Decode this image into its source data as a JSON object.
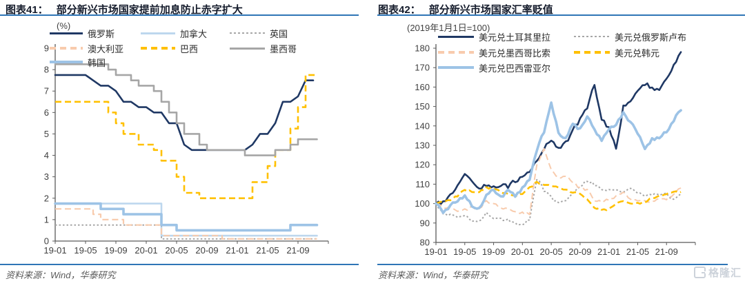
{
  "page": {
    "background": "#ffffff"
  },
  "logo": {
    "text": "格隆汇"
  },
  "colors": {
    "accent_rule": "#2E75B6",
    "navy": "#1F3864",
    "light_blue": "#BDD7EE",
    "medium_blue": "#9DC3E6",
    "gray": "#A6A6A6",
    "peach": "#F8CBAD",
    "gold": "#FFC000"
  },
  "chart_data": [
    {
      "type": "line",
      "fig_label": "图表41：",
      "title": "部分新兴市场国家提前加息防止赤字扩大",
      "unit_label": "(%)",
      "source": "资料来源：Wind，华泰研究",
      "x_start": "2019-01",
      "x_end": "2021-11",
      "x_interval": "monthly",
      "x_tick_labels": [
        "19-01",
        "19-05",
        "19-09",
        "20-01",
        "20-05",
        "20-09",
        "21-01",
        "21-05",
        "21-09"
      ],
      "ylim": [
        0,
        9
      ],
      "y_ticks": [
        0,
        1,
        2,
        3,
        4,
        5,
        6,
        7,
        8,
        9
      ],
      "grid": false,
      "legend_position": "top",
      "series": [
        {
          "name": "俄罗斯",
          "color": "#1F3864",
          "style": "solid",
          "width": 2.6,
          "render": "linear",
          "values": [
            7.75,
            7.75,
            7.75,
            7.75,
            7.75,
            7.5,
            7.25,
            7.25,
            7,
            6.5,
            6.5,
            6.25,
            6.25,
            6,
            6,
            5.5,
            5.5,
            4.5,
            4.25,
            4.25,
            4.25,
            4.25,
            4.25,
            4.25,
            4.25,
            4.25,
            4.5,
            5,
            5,
            5.5,
            6.5,
            6.5,
            6.75,
            7.5,
            7.5
          ]
        },
        {
          "name": "加拿大",
          "color": "#BDD7EE",
          "style": "solid",
          "width": 2.6,
          "render": "step",
          "values": [
            1.75,
            1.75,
            1.75,
            1.75,
            1.75,
            1.75,
            1.75,
            1.75,
            1.75,
            1.75,
            1.75,
            1.75,
            1.75,
            1.75,
            0.25,
            0.25,
            0.25,
            0.25,
            0.25,
            0.25,
            0.25,
            0.25,
            0.25,
            0.25,
            0.25,
            0.25,
            0.25,
            0.25,
            0.25,
            0.25,
            0.25,
            0.25,
            0.25,
            0.25,
            0.25
          ]
        },
        {
          "name": "英国",
          "color": "#A6A6A6",
          "style": "dotted",
          "width": 2,
          "render": "step",
          "values": [
            0.75,
            0.75,
            0.75,
            0.75,
            0.75,
            0.75,
            0.75,
            0.75,
            0.75,
            0.75,
            0.75,
            0.75,
            0.75,
            0.75,
            0.1,
            0.1,
            0.1,
            0.1,
            0.1,
            0.1,
            0.1,
            0.1,
            0.1,
            0.1,
            0.1,
            0.1,
            0.1,
            0.1,
            0.1,
            0.1,
            0.1,
            0.1,
            0.1,
            0.1,
            0.1
          ]
        },
        {
          "name": "澳大利亚",
          "color": "#F8CBAD",
          "style": "dashed",
          "width": 2.2,
          "render": "step",
          "values": [
            1.5,
            1.5,
            1.5,
            1.5,
            1.5,
            1.25,
            1,
            1,
            1,
            0.75,
            0.75,
            0.75,
            0.75,
            0.75,
            0.25,
            0.25,
            0.25,
            0.25,
            0.25,
            0.25,
            0.25,
            0.25,
            0.1,
            0.1,
            0.1,
            0.1,
            0.1,
            0.1,
            0.1,
            0.1,
            0.1,
            0.1,
            0.1,
            0.1,
            0.1
          ]
        },
        {
          "name": "巴西",
          "color": "#FFC000",
          "style": "dashed",
          "width": 2.6,
          "render": "step",
          "values": [
            6.5,
            6.5,
            6.5,
            6.5,
            6.5,
            6.5,
            6.5,
            6,
            5.5,
            5,
            5,
            4.5,
            4.5,
            4.25,
            3.75,
            3.75,
            3,
            2.25,
            2.25,
            2,
            2,
            2,
            2,
            2,
            2,
            2,
            2.75,
            2.75,
            3.5,
            4.25,
            4.25,
            5.25,
            6.25,
            7.75,
            7.75
          ]
        },
        {
          "name": "墨西哥",
          "color": "#A6A6A6",
          "style": "solid",
          "width": 2.6,
          "render": "step",
          "values": [
            8.25,
            8.25,
            8.25,
            8.25,
            8.25,
            8.25,
            8.25,
            8,
            7.75,
            7.75,
            7.5,
            7.25,
            7.25,
            7,
            6.5,
            6,
            5.5,
            5,
            5,
            4.5,
            4.25,
            4.25,
            4.25,
            4.25,
            4.25,
            4,
            4,
            4,
            4,
            4.25,
            4.25,
            4.5,
            4.75,
            4.75,
            4.75
          ]
        },
        {
          "name": "韩国",
          "color": "#9DC3E6",
          "style": "solid",
          "width": 3.6,
          "render": "step",
          "values": [
            1.75,
            1.75,
            1.75,
            1.75,
            1.75,
            1.75,
            1.5,
            1.5,
            1.5,
            1.25,
            1.25,
            1.25,
            1.25,
            1.25,
            0.75,
            0.75,
            0.5,
            0.5,
            0.5,
            0.5,
            0.5,
            0.5,
            0.5,
            0.5,
            0.5,
            0.5,
            0.5,
            0.5,
            0.5,
            0.5,
            0.5,
            0.75,
            0.75,
            0.75,
            0.75
          ]
        }
      ]
    },
    {
      "type": "line",
      "fig_label": "图表42：",
      "title": "部分新兴市场国家汇率贬值",
      "unit_label": "(2019年1月1日=100)",
      "source": "资料来源：Wind，华泰研究",
      "x_start": "2019-01",
      "x_end": "2021-11",
      "x_interval": "monthly",
      "x_tick_labels": [
        "19-01",
        "19-05",
        "19-09",
        "20-01",
        "20-05",
        "20-09",
        "21-01",
        "21-05",
        "21-09"
      ],
      "ylim": [
        80,
        180
      ],
      "y_ticks": [
        80,
        90,
        100,
        110,
        120,
        130,
        140,
        150,
        160,
        170,
        180
      ],
      "grid": false,
      "legend_position": "top",
      "series": [
        {
          "name": "美元兑土耳其里拉",
          "color": "#1F3864",
          "style": "solid",
          "width": 2.6,
          "render": "noisy",
          "jitter": 2.2,
          "values": [
            100,
            101,
            104,
            110,
            116,
            111,
            107,
            110,
            108,
            110,
            109,
            112,
            113,
            116,
            122,
            129,
            132,
            129,
            131,
            138,
            143,
            150,
            161,
            143,
            139,
            128,
            150,
            153,
            157,
            162,
            160,
            158,
            164,
            171,
            178
          ]
        },
        {
          "name": "美元兑俄罗斯卢布",
          "color": "#A6A6A6",
          "style": "dotted",
          "width": 2,
          "render": "noisy",
          "jitter": 1.5,
          "values": [
            100,
            95,
            94,
            93,
            94,
            91,
            91,
            95,
            93,
            92,
            92,
            90,
            89,
            92,
            113,
            107,
            103,
            100,
            102,
            106,
            109,
            112,
            110,
            107,
            107,
            107,
            106,
            108,
            106,
            104,
            105,
            105,
            105,
            102,
            105
          ]
        },
        {
          "name": "美元兑墨西哥比索",
          "color": "#F8CBAD",
          "style": "dashed",
          "width": 2,
          "render": "noisy",
          "jitter": 1.4,
          "values": [
            100,
            98,
            98,
            96,
            97,
            98,
            97,
            101,
            100,
            98,
            97,
            96,
            95,
            95,
            120,
            128,
            117,
            113,
            114,
            111,
            108,
            107,
            102,
            101,
            102,
            104,
            106,
            102,
            101,
            101,
            101,
            102,
            102,
            105,
            108
          ]
        },
        {
          "name": "美元兑韩元",
          "color": "#FFC000",
          "style": "dashed",
          "width": 2.6,
          "render": "noisy",
          "jitter": 1.0,
          "values": [
            100,
            101,
            102,
            104,
            107,
            106,
            106,
            108,
            108,
            106,
            105,
            104,
            105,
            108,
            111,
            110,
            109,
            108,
            107,
            106,
            105,
            102,
            98,
            97,
            97,
            100,
            101,
            100,
            100,
            101,
            103,
            104,
            105,
            106,
            106
          ]
        },
        {
          "name": "美元兑巴西雷亚尔",
          "color": "#9DC3E6",
          "style": "solid",
          "width": 3.6,
          "render": "noisy",
          "jitter": 1.8,
          "values": [
            100,
            96,
            99,
            101,
            104,
            99,
            97,
            105,
            107,
            103,
            107,
            104,
            108,
            113,
            128,
            137,
            152,
            136,
            134,
            141,
            138,
            145,
            138,
            133,
            139,
            141,
            147,
            142,
            136,
            129,
            133,
            134,
            137,
            143,
            148
          ]
        }
      ]
    }
  ]
}
